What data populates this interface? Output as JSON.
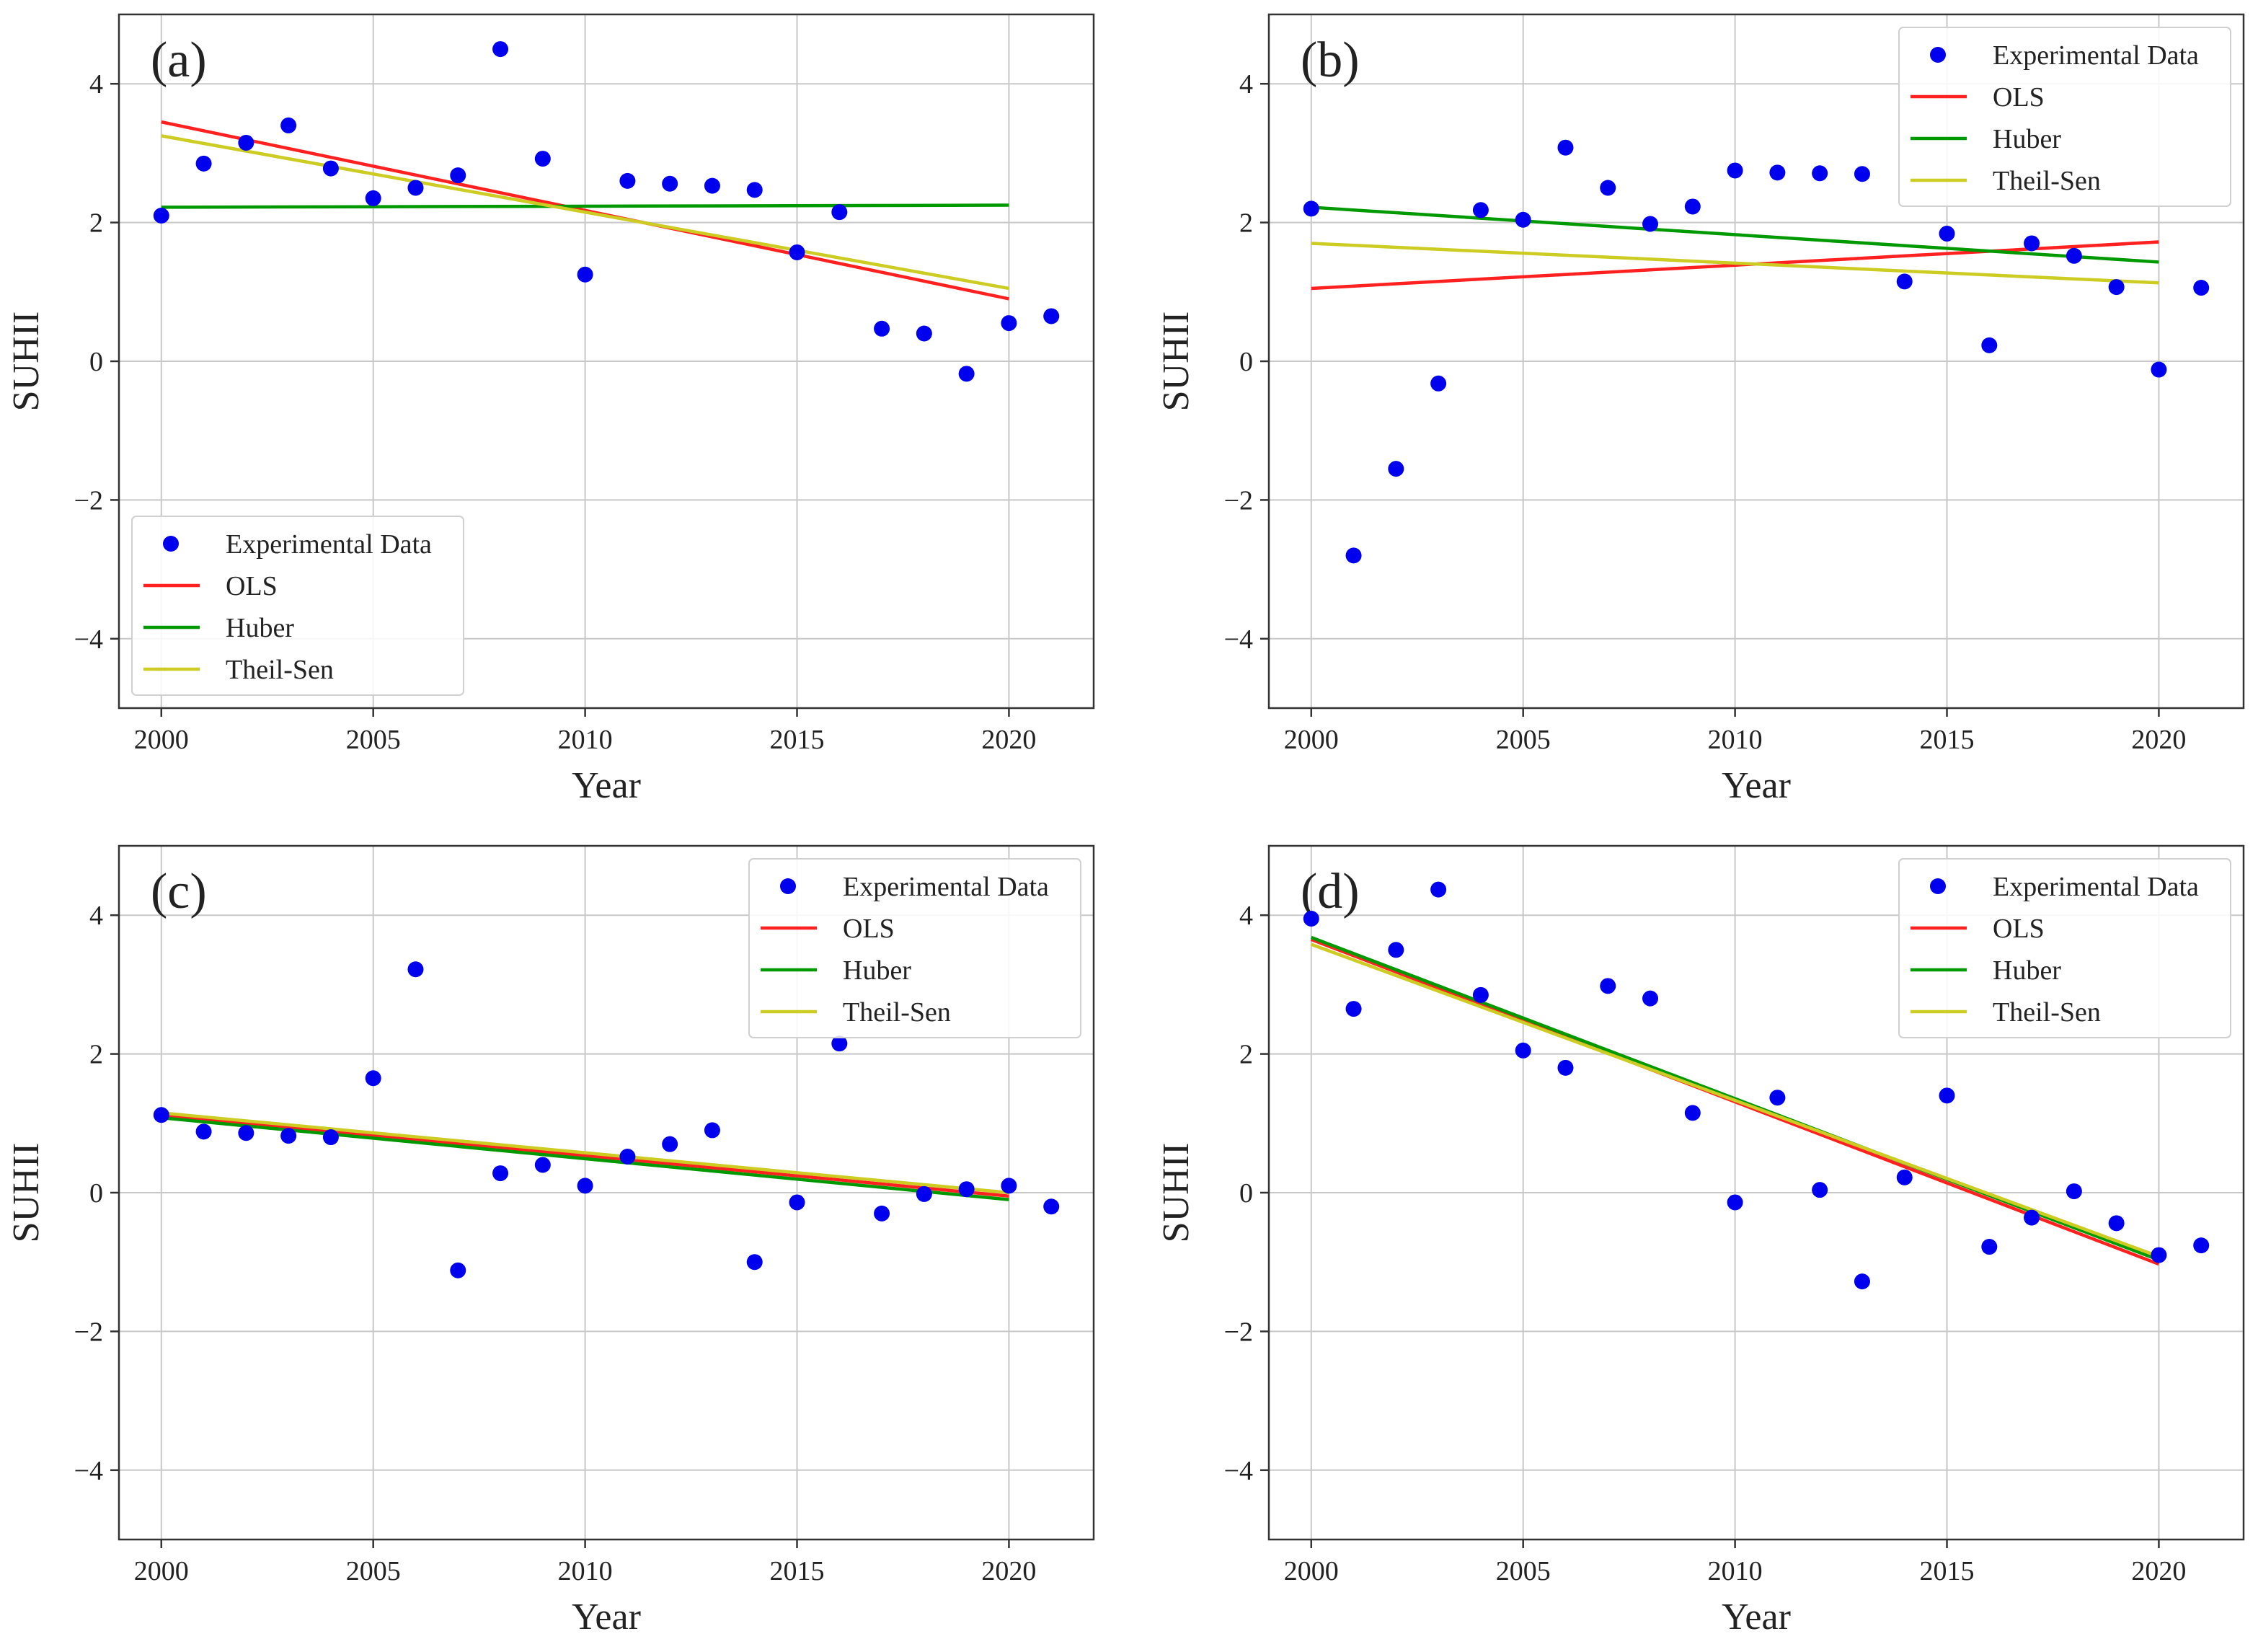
{
  "colors": {
    "data": "#0000ee",
    "ols": "#ff2020",
    "huber": "#009900",
    "theil_sen": "#cccc22",
    "grid": "#c8c8c8",
    "axis": "#333333"
  },
  "chart_data": [
    {
      "id": "a",
      "panel_label": "(a)",
      "type": "scatter",
      "xlabel": "Year",
      "ylabel": "SUHII",
      "xlim": [
        1999,
        2022
      ],
      "ylim": [
        -5,
        5
      ],
      "xticks": [
        2000,
        2005,
        2010,
        2015,
        2020
      ],
      "xtick_labels": [
        "2000",
        "2005",
        "2010",
        "2015",
        "2020"
      ],
      "yticks": [
        4,
        2,
        0,
        -2,
        -4
      ],
      "ytick_labels": [
        "4",
        "2",
        "0",
        "−2",
        "−4"
      ],
      "grid": true,
      "legend_position": "lower-left",
      "legend": [
        "Experimental Data",
        "OLS",
        "Huber",
        "Theil-Sen"
      ],
      "points": {
        "x": [
          2000,
          2001,
          2002,
          2003,
          2004,
          2005,
          2006,
          2007,
          2008,
          2009,
          2010,
          2011,
          2012,
          2013,
          2014,
          2015,
          2016,
          2017,
          2018,
          2019,
          2020,
          2021
        ],
        "y": [
          2.1,
          2.85,
          3.15,
          3.4,
          2.78,
          2.35,
          2.5,
          2.68,
          4.5,
          2.92,
          1.25,
          2.6,
          2.56,
          2.53,
          2.47,
          1.57,
          2.15,
          0.47,
          0.4,
          -0.18,
          0.55,
          0.65
        ]
      },
      "fits": [
        {
          "name": "OLS",
          "x": [
            2000,
            2020
          ],
          "y": [
            3.45,
            0.9
          ]
        },
        {
          "name": "Huber",
          "x": [
            2000,
            2020
          ],
          "y": [
            2.22,
            2.25
          ]
        },
        {
          "name": "Theil-Sen",
          "x": [
            2000,
            2020
          ],
          "y": [
            3.25,
            1.05
          ]
        }
      ]
    },
    {
      "id": "b",
      "panel_label": "(b)",
      "type": "scatter",
      "xlabel": "Year",
      "ylabel": "SUHII",
      "xlim": [
        1999,
        2022
      ],
      "ylim": [
        -5,
        5
      ],
      "xticks": [
        2000,
        2005,
        2010,
        2015,
        2020
      ],
      "xtick_labels": [
        "2000",
        "2005",
        "2010",
        "2015",
        "2020"
      ],
      "yticks": [
        4,
        2,
        0,
        -2,
        -4
      ],
      "ytick_labels": [
        "4",
        "2",
        "0",
        "−2",
        "−4"
      ],
      "grid": true,
      "legend_position": "upper-right",
      "legend": [
        "Experimental Data",
        "OLS",
        "Huber",
        "Theil-Sen"
      ],
      "points": {
        "x": [
          2000,
          2001,
          2002,
          2003,
          2004,
          2005,
          2006,
          2007,
          2008,
          2009,
          2010,
          2011,
          2012,
          2013,
          2014,
          2015,
          2016,
          2017,
          2018,
          2019,
          2020,
          2021
        ],
        "y": [
          2.2,
          -2.8,
          -1.55,
          -0.32,
          2.18,
          2.04,
          3.08,
          2.5,
          1.98,
          2.23,
          2.75,
          2.72,
          2.71,
          2.7,
          1.15,
          1.84,
          0.23,
          1.7,
          1.52,
          1.07,
          -0.12,
          1.06
        ]
      },
      "fits": [
        {
          "name": "OLS",
          "x": [
            2000,
            2020
          ],
          "y": [
            1.05,
            1.72
          ]
        },
        {
          "name": "Huber",
          "x": [
            2000,
            2020
          ],
          "y": [
            2.22,
            1.43
          ]
        },
        {
          "name": "Theil-Sen",
          "x": [
            2000,
            2020
          ],
          "y": [
            1.7,
            1.13
          ]
        }
      ]
    },
    {
      "id": "c",
      "panel_label": "(c)",
      "type": "scatter",
      "xlabel": "Year",
      "ylabel": "SUHII",
      "xlim": [
        1999,
        2022
      ],
      "ylim": [
        -5,
        5
      ],
      "xticks": [
        2000,
        2005,
        2010,
        2015,
        2020
      ],
      "xtick_labels": [
        "2000",
        "2005",
        "2010",
        "2015",
        "2020"
      ],
      "yticks": [
        4,
        2,
        0,
        -2,
        -4
      ],
      "ytick_labels": [
        "4",
        "2",
        "0",
        "−2",
        "−4"
      ],
      "grid": true,
      "legend_position": "upper-right",
      "legend": [
        "Experimental Data",
        "OLS",
        "Huber",
        "Theil-Sen"
      ],
      "points": {
        "x": [
          2000,
          2001,
          2002,
          2003,
          2004,
          2005,
          2006,
          2007,
          2008,
          2009,
          2010,
          2011,
          2012,
          2013,
          2014,
          2015,
          2016,
          2017,
          2018,
          2019,
          2020,
          2021
        ],
        "y": [
          1.12,
          0.88,
          0.86,
          0.82,
          0.8,
          1.65,
          3.22,
          -1.12,
          0.28,
          0.4,
          0.1,
          0.52,
          0.7,
          0.9,
          -1.0,
          -0.14,
          2.15,
          -0.3,
          -0.02,
          0.05,
          0.1,
          -0.2
        ]
      },
      "fits": [
        {
          "name": "OLS",
          "x": [
            2000,
            2020
          ],
          "y": [
            1.12,
            -0.05
          ]
        },
        {
          "name": "Huber",
          "x": [
            2000,
            2020
          ],
          "y": [
            1.08,
            -0.1
          ]
        },
        {
          "name": "Theil-Sen",
          "x": [
            2000,
            2020
          ],
          "y": [
            1.15,
            0.0
          ]
        }
      ]
    },
    {
      "id": "d",
      "panel_label": "(d)",
      "type": "scatter",
      "xlabel": "Year",
      "ylabel": "SUHII",
      "xlim": [
        1999,
        2022
      ],
      "ylim": [
        -5,
        5
      ],
      "xticks": [
        2000,
        2005,
        2010,
        2015,
        2020
      ],
      "xtick_labels": [
        "2000",
        "2005",
        "2010",
        "2015",
        "2020"
      ],
      "yticks": [
        4,
        2,
        0,
        -2,
        -4
      ],
      "ytick_labels": [
        "4",
        "2",
        "0",
        "−2",
        "−4"
      ],
      "grid": true,
      "legend_position": "upper-right",
      "legend": [
        "Experimental Data",
        "OLS",
        "Huber",
        "Theil-Sen"
      ],
      "points": {
        "x": [
          2000,
          2001,
          2002,
          2003,
          2004,
          2005,
          2006,
          2007,
          2008,
          2009,
          2010,
          2011,
          2012,
          2013,
          2014,
          2015,
          2016,
          2017,
          2018,
          2019,
          2020,
          2021
        ],
        "y": [
          3.95,
          2.65,
          3.5,
          4.37,
          2.85,
          2.05,
          1.8,
          2.98,
          2.8,
          1.15,
          -0.14,
          1.37,
          0.04,
          -1.28,
          0.22,
          1.4,
          -0.78,
          -0.36,
          0.02,
          -0.44,
          -0.9,
          -0.76
        ]
      },
      "fits": [
        {
          "name": "OLS",
          "x": [
            2000,
            2020
          ],
          "y": [
            3.65,
            -1.03
          ]
        },
        {
          "name": "Huber",
          "x": [
            2000,
            2020
          ],
          "y": [
            3.68,
            -0.97
          ]
        },
        {
          "name": "Theil-Sen",
          "x": [
            2000,
            2020
          ],
          "y": [
            3.58,
            -0.92
          ]
        }
      ]
    }
  ]
}
